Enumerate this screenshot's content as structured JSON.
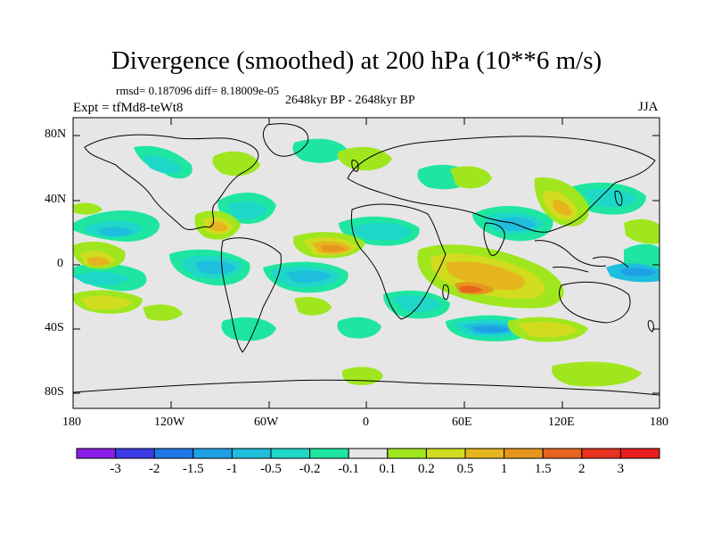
{
  "title": "Divergence (smoothed) at 200 hPa (10**6 m/s)",
  "stats": "rmsd= 0.187096 diff= 8.18009e-05",
  "period": "2648kyr BP - 2648kyr BP",
  "experiment": "Expt = tfMd8-teWt8",
  "season": "JJA",
  "lat_ticks": [
    "80N",
    "40N",
    "0",
    "40S",
    "80S"
  ],
  "lon_ticks": [
    "180",
    "120W",
    "60W",
    "0",
    "60E",
    "120E",
    "180"
  ],
  "colorbar": {
    "labels": [
      "-3",
      "-2",
      "-1.5",
      "-1",
      "-0.5",
      "-0.2",
      "-0.1",
      "0.1",
      "0.2",
      "0.5",
      "1",
      "1.5",
      "2",
      "3"
    ],
    "colors": [
      "#8a1ee6",
      "#3c3ce6",
      "#1e78e6",
      "#1ea0e6",
      "#1ebedc",
      "#1ed7c8",
      "#1ee6a0",
      "#e6e6e6",
      "#a0e61e",
      "#d2dc1e",
      "#e6b41e",
      "#e6961e",
      "#e6641e",
      "#e6321e",
      "#e61e1e"
    ]
  },
  "map_background": "#e6e6e6"
}
